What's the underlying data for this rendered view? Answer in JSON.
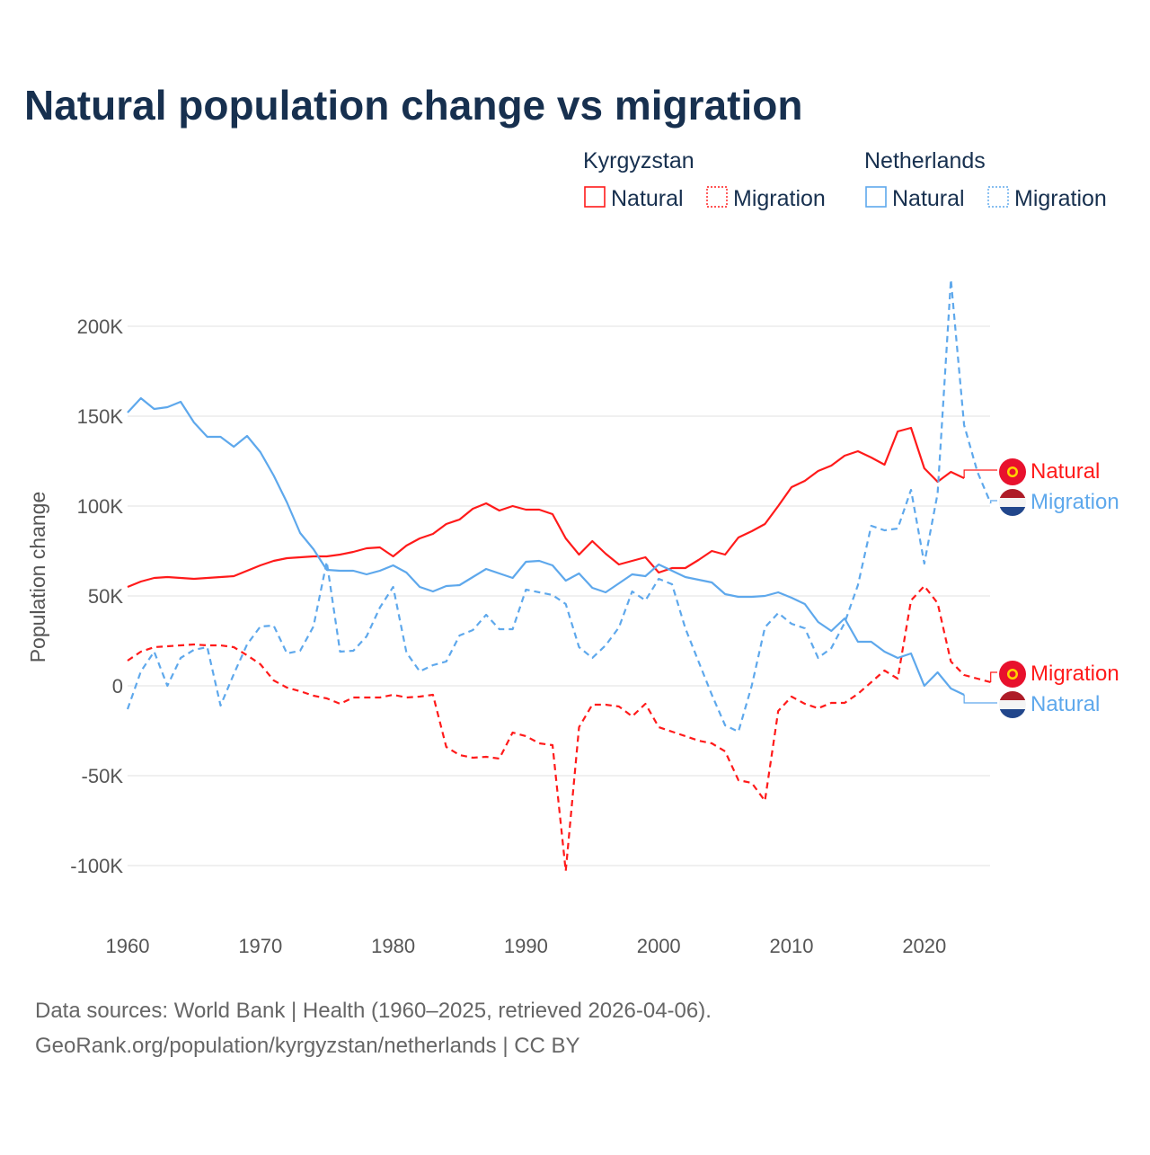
{
  "title": "Natural population change vs migration",
  "legend": {
    "groups": [
      {
        "country": "Kyrgyzstan",
        "items": [
          "Natural",
          "Migration"
        ],
        "color": "#ff1a1a"
      },
      {
        "country": "Netherlands",
        "items": [
          "Natural",
          "Migration"
        ],
        "color": "#5ea8ec"
      }
    ]
  },
  "source_line1": "Data sources: World Bank | Health (1960–2025, retrieved 2026-04-06).",
  "source_line2": "GeoRank.org/population/kyrgyzstan/netherlands | CC BY",
  "chart_data": {
    "type": "line",
    "title": "Natural population change vs migration",
    "xlabel": "",
    "ylabel": "Population change",
    "xlim": [
      1960,
      2025
    ],
    "ylim": [
      -120000,
      230000
    ],
    "x_ticks": [
      1960,
      1970,
      1980,
      1990,
      2000,
      2010,
      2020
    ],
    "x_tick_labels": [
      "1960",
      "1970",
      "1980",
      "1990",
      "2000",
      "2010",
      "2020"
    ],
    "y_ticks": [
      -100000,
      -50000,
      0,
      50000,
      100000,
      150000,
      200000
    ],
    "y_tick_labels": [
      "-100K",
      "-50K",
      "0",
      "50K",
      "100K",
      "150K",
      "200K"
    ],
    "grid": true,
    "legend_position": "top-right",
    "x": [
      1960,
      1961,
      1962,
      1963,
      1964,
      1965,
      1966,
      1967,
      1968,
      1969,
      1970,
      1971,
      1972,
      1973,
      1974,
      1975,
      1976,
      1977,
      1978,
      1979,
      1980,
      1981,
      1982,
      1983,
      1984,
      1985,
      1986,
      1987,
      1988,
      1989,
      1990,
      1991,
      1992,
      1993,
      1994,
      1995,
      1996,
      1997,
      1998,
      1999,
      2000,
      2001,
      2002,
      2003,
      2004,
      2005,
      2006,
      2007,
      2008,
      2009,
      2010,
      2011,
      2012,
      2013,
      2014,
      2015,
      2016,
      2017,
      2018,
      2019,
      2020,
      2021,
      2022,
      2023,
      2024,
      2025
    ],
    "series": [
      {
        "name": "Kyrgyzstan Natural",
        "end_label": "Natural",
        "country": "Kyrgyzstan",
        "color": "#ff1a1a",
        "dashed": false,
        "values": [
          55000,
          58000,
          60000,
          60500,
          60000,
          59500,
          60000,
          60500,
          61000,
          64000,
          67000,
          69500,
          71000,
          71500,
          72000,
          72000,
          73000,
          74500,
          76500,
          77000,
          72000,
          78000,
          82000,
          84500,
          90000,
          92500,
          98500,
          101500,
          97500,
          100000,
          98000,
          98000,
          95500,
          82000,
          73000,
          80500,
          73500,
          67500,
          69500,
          71500,
          63000,
          65500,
          65500,
          70000,
          75000,
          73000,
          82500,
          86000,
          90000,
          100000,
          110500,
          114000,
          119500,
          122500,
          128000,
          130500,
          127000,
          123000,
          141500,
          143500,
          121000,
          113500,
          119000,
          115500,
          null,
          null
        ]
      },
      {
        "name": "Kyrgyzstan Migration",
        "end_label": "Migration",
        "country": "Kyrgyzstan",
        "color": "#ff1a1a",
        "dashed": true,
        "values": [
          14000,
          19000,
          21500,
          22000,
          22500,
          23000,
          22500,
          22500,
          21500,
          17000,
          12000,
          3000,
          -1000,
          -3000,
          -5500,
          -7000,
          -10000,
          -6500,
          -6500,
          -6500,
          -5000,
          -6500,
          -6000,
          -5000,
          -34000,
          -38500,
          -40000,
          -39500,
          -40500,
          -26000,
          -28000,
          -32000,
          -33000,
          -103000,
          -23000,
          -10500,
          -10500,
          -11500,
          -17000,
          -10000,
          -23000,
          -25500,
          -28000,
          -30500,
          -32000,
          -36500,
          -52500,
          -54000,
          -64000,
          -14000,
          -6000,
          -10000,
          -12500,
          -9500,
          -9500,
          -4500,
          2000,
          8500,
          4000,
          47500,
          55500,
          46000,
          13500,
          6000,
          4000,
          2000
        ]
      },
      {
        "name": "Netherlands Natural",
        "end_label": "Natural",
        "country": "Netherlands",
        "color": "#5ea8ec",
        "dashed": false,
        "values": [
          152000,
          160000,
          154000,
          155000,
          158000,
          146500,
          138500,
          138500,
          133000,
          139000,
          130000,
          117000,
          102000,
          85000,
          76000,
          64500,
          64000,
          64000,
          62000,
          64000,
          67000,
          63000,
          55000,
          52500,
          55500,
          56000,
          60500,
          65000,
          62500,
          60000,
          69000,
          69500,
          67000,
          58500,
          62500,
          54500,
          52000,
          57000,
          62000,
          61000,
          67500,
          64000,
          60500,
          59000,
          57500,
          51000,
          49500,
          49500,
          50000,
          52000,
          49000,
          45500,
          35500,
          30500,
          37500,
          24500,
          24500,
          19000,
          15500,
          18000,
          0,
          7500,
          -1500,
          -5000,
          null,
          null
        ]
      },
      {
        "name": "Netherlands Migration",
        "end_label": "Migration",
        "country": "Netherlands",
        "color": "#5ea8ec",
        "dashed": true,
        "values": [
          -13000,
          8000,
          19000,
          0,
          15500,
          20000,
          21500,
          -11000,
          6500,
          23000,
          33000,
          33500,
          18000,
          19500,
          33000,
          69000,
          19000,
          19500,
          27500,
          43500,
          55000,
          18500,
          8000,
          11500,
          13500,
          28000,
          31000,
          39500,
          31500,
          31500,
          53500,
          52000,
          50500,
          45500,
          21500,
          15500,
          22500,
          32500,
          52500,
          47500,
          59500,
          56500,
          32000,
          13500,
          -5000,
          -22000,
          -25500,
          0,
          32500,
          40500,
          34500,
          32000,
          15500,
          21000,
          35000,
          56000,
          89000,
          86500,
          87500,
          109000,
          68000,
          107000,
          226000,
          145000,
          119000,
          101500
        ]
      }
    ]
  }
}
